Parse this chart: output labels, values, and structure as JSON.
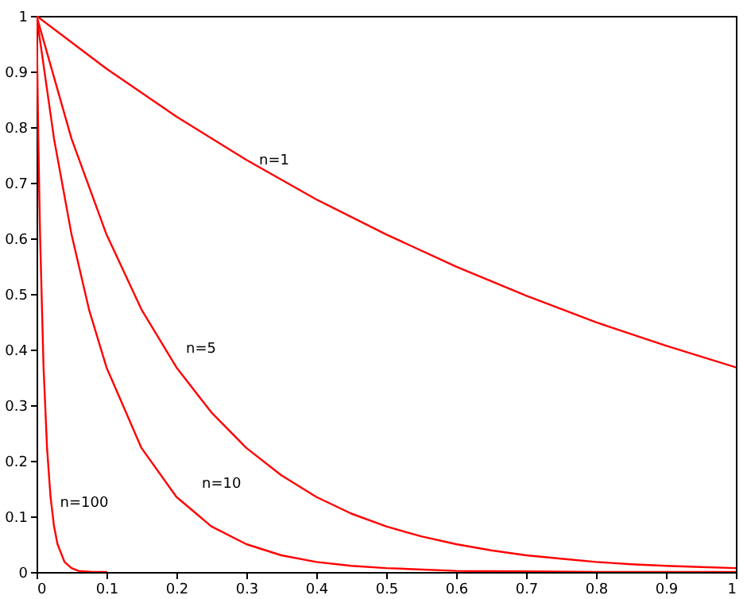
{
  "chart_data": {
    "type": "line",
    "xlim": [
      0,
      1
    ],
    "ylim": [
      0,
      1
    ],
    "xticks": [
      0,
      0.1,
      0.2,
      0.3,
      0.4,
      0.5,
      0.6,
      0.7,
      0.8,
      0.9,
      1
    ],
    "yticks": [
      0,
      0.1,
      0.2,
      0.3,
      0.4,
      0.5,
      0.6,
      0.7,
      0.8,
      0.9,
      1
    ],
    "grid": false,
    "marker": "none",
    "line_style": "solid",
    "series": [
      {
        "name": "n=1",
        "color": "#ff0000",
        "x": [
          0,
          0.1,
          0.2,
          0.3,
          0.4,
          0.5,
          0.6,
          0.7,
          0.8,
          0.9,
          1
        ],
        "values": [
          1,
          0.905,
          0.819,
          0.741,
          0.67,
          0.607,
          0.549,
          0.497,
          0.449,
          0.407,
          0.368
        ]
      },
      {
        "name": "n=5",
        "color": "#ff0000",
        "x": [
          0,
          0.05,
          0.1,
          0.15,
          0.2,
          0.25,
          0.3,
          0.35,
          0.4,
          0.45,
          0.5,
          0.55,
          0.6,
          0.65,
          0.7,
          0.75,
          0.8,
          0.85,
          0.9,
          0.95,
          1
        ],
        "values": [
          1,
          0.779,
          0.607,
          0.472,
          0.368,
          0.287,
          0.223,
          0.174,
          0.135,
          0.105,
          0.082,
          0.064,
          0.05,
          0.039,
          0.03,
          0.024,
          0.018,
          0.014,
          0.011,
          0.009,
          0.007
        ]
      },
      {
        "name": "n=10",
        "color": "#ff0000",
        "x": [
          0,
          0.025,
          0.05,
          0.075,
          0.1,
          0.15,
          0.2,
          0.25,
          0.3,
          0.35,
          0.4,
          0.45,
          0.5,
          0.6,
          0.7,
          0.8,
          1
        ],
        "values": [
          1,
          0.779,
          0.607,
          0.472,
          0.368,
          0.223,
          0.135,
          0.082,
          0.05,
          0.03,
          0.018,
          0.011,
          0.007,
          0.002,
          0.001,
          0,
          0
        ]
      },
      {
        "name": "n=100",
        "color": "#ff0000",
        "x": [
          0,
          0.0025,
          0.005,
          0.01,
          0.015,
          0.02,
          0.025,
          0.03,
          0.04,
          0.05,
          0.06,
          0.08,
          0.1
        ],
        "values": [
          1,
          0.779,
          0.607,
          0.368,
          0.223,
          0.135,
          0.082,
          0.05,
          0.018,
          0.007,
          0.002,
          0,
          0
        ]
      }
    ]
  }
}
